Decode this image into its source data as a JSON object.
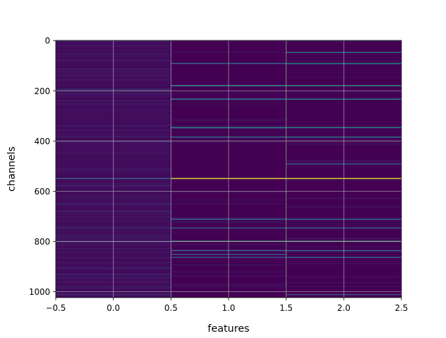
{
  "chart_data": {
    "type": "heatmap",
    "xlabel": "features",
    "ylabel": "channels",
    "x_ticks": [
      "−0.5",
      "0.0",
      "0.5",
      "1.0",
      "1.5",
      "2.0",
      "2.5"
    ],
    "y_ticks": [
      "0",
      "200",
      "400",
      "600",
      "800",
      "1000"
    ],
    "xlim": [
      -0.5,
      2.5
    ],
    "ylim": [
      1023.5,
      -0.5
    ],
    "n_channels": 1024,
    "n_features": 3,
    "columns": [
      0,
      1,
      2
    ],
    "colormap": "viridis",
    "colors": {
      "background": "#440154",
      "low": "#471365",
      "mid_low": "#3b528b",
      "mid": "#21918c",
      "high": "#5ec962",
      "max": "#fde725"
    },
    "grid": true,
    "column_base_values": [
      0.03,
      0.0,
      0.0
    ],
    "stripes": [
      {
        "column": 0,
        "channel": 196,
        "value": 0.16
      },
      {
        "column": 0,
        "channel": 400,
        "value": 0.14
      },
      {
        "column": 0,
        "channel": 548,
        "value": 0.32
      },
      {
        "column": 0,
        "channel": 800,
        "value": 0.18
      },
      {
        "column": 0,
        "channel": 1010,
        "value": 0.12
      },
      {
        "column": 1,
        "channel": 90,
        "value": 0.35
      },
      {
        "column": 1,
        "channel": 178,
        "value": 0.55
      },
      {
        "column": 1,
        "channel": 232,
        "value": 0.42
      },
      {
        "column": 1,
        "channel": 345,
        "value": 0.5
      },
      {
        "column": 1,
        "channel": 383,
        "value": 0.38
      },
      {
        "column": 1,
        "channel": 548,
        "value": 0.95
      },
      {
        "column": 1,
        "channel": 710,
        "value": 0.35
      },
      {
        "column": 1,
        "channel": 745,
        "value": 0.3
      },
      {
        "column": 1,
        "channel": 798,
        "value": 0.6
      },
      {
        "column": 1,
        "channel": 835,
        "value": 0.35
      },
      {
        "column": 1,
        "channel": 850,
        "value": 0.3
      },
      {
        "column": 1,
        "channel": 862,
        "value": 0.28
      },
      {
        "column": 2,
        "channel": 46,
        "value": 0.42
      },
      {
        "column": 2,
        "channel": 90,
        "value": 0.45
      },
      {
        "column": 2,
        "channel": 178,
        "value": 0.55
      },
      {
        "column": 2,
        "channel": 232,
        "value": 0.45
      },
      {
        "column": 2,
        "channel": 345,
        "value": 0.5
      },
      {
        "column": 2,
        "channel": 383,
        "value": 0.4
      },
      {
        "column": 2,
        "channel": 490,
        "value": 0.3
      },
      {
        "column": 2,
        "channel": 548,
        "value": 0.95
      },
      {
        "column": 2,
        "channel": 710,
        "value": 0.38
      },
      {
        "column": 2,
        "channel": 745,
        "value": 0.3
      },
      {
        "column": 2,
        "channel": 798,
        "value": 0.62
      },
      {
        "column": 2,
        "channel": 835,
        "value": 0.4
      },
      {
        "column": 2,
        "channel": 862,
        "value": 0.35
      },
      {
        "column": 2,
        "channel": 1010,
        "value": 0.25
      }
    ]
  }
}
